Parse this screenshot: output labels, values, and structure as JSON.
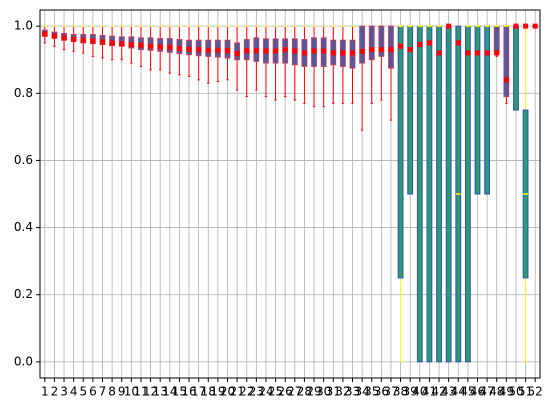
{
  "chart_data": {
    "type": "box",
    "categories": [
      "1",
      "2",
      "3",
      "4",
      "5",
      "6",
      "7",
      "8",
      "9",
      "10",
      "11",
      "12",
      "13",
      "14",
      "15",
      "16",
      "17",
      "18",
      "19",
      "20",
      "21",
      "22",
      "23",
      "24",
      "25",
      "26",
      "27",
      "28",
      "29",
      "30",
      "31",
      "32",
      "33",
      "34",
      "35",
      "36",
      "37",
      "38",
      "39",
      "40",
      "41",
      "42",
      "43",
      "44",
      "45",
      "46",
      "47",
      "48",
      "49",
      "50",
      "51",
      "52"
    ],
    "stats": [
      [
        0.95,
        0.97,
        0.978,
        0.988,
        1
      ],
      [
        0.94,
        0.965,
        0.972,
        0.982,
        1
      ],
      [
        0.93,
        0.958,
        0.967,
        0.978,
        1
      ],
      [
        0.925,
        0.955,
        0.962,
        0.975,
        1
      ],
      [
        0.92,
        0.95,
        0.96,
        0.975,
        1
      ],
      [
        0.91,
        0.948,
        0.958,
        0.975,
        1
      ],
      [
        0.905,
        0.945,
        0.955,
        0.972,
        1
      ],
      [
        0.9,
        0.942,
        0.952,
        0.97,
        1
      ],
      [
        0.9,
        0.94,
        0.95,
        0.968,
        1
      ],
      [
        0.89,
        0.935,
        0.948,
        0.968,
        1
      ],
      [
        0.88,
        0.93,
        0.945,
        0.965,
        1
      ],
      [
        0.87,
        0.928,
        0.943,
        0.965,
        1
      ],
      [
        0.87,
        0.925,
        0.94,
        0.963,
        1
      ],
      [
        0.86,
        0.922,
        0.94,
        0.963,
        1
      ],
      [
        0.855,
        0.918,
        0.935,
        0.96,
        1
      ],
      [
        0.85,
        0.915,
        0.933,
        0.958,
        1
      ],
      [
        0.84,
        0.912,
        0.932,
        0.958,
        1
      ],
      [
        0.83,
        0.91,
        0.93,
        0.958,
        1
      ],
      [
        0.835,
        0.908,
        0.93,
        0.958,
        1
      ],
      [
        0.84,
        0.905,
        0.93,
        0.958,
        1
      ],
      [
        0.81,
        0.9,
        0.92,
        0.95,
        1
      ],
      [
        0.79,
        0.9,
        0.93,
        0.96,
        1
      ],
      [
        0.81,
        0.895,
        0.93,
        0.965,
        1
      ],
      [
        0.79,
        0.89,
        0.93,
        0.962,
        1
      ],
      [
        0.78,
        0.89,
        0.93,
        0.962,
        1
      ],
      [
        0.79,
        0.89,
        0.935,
        0.962,
        1
      ],
      [
        0.78,
        0.885,
        0.93,
        0.962,
        1
      ],
      [
        0.77,
        0.88,
        0.925,
        0.96,
        1
      ],
      [
        0.76,
        0.88,
        0.93,
        0.965,
        1
      ],
      [
        0.76,
        0.88,
        0.93,
        0.965,
        1
      ],
      [
        0.77,
        0.885,
        0.925,
        0.958,
        1
      ],
      [
        0.77,
        0.88,
        0.925,
        0.958,
        1
      ],
      [
        0.77,
        0.875,
        0.925,
        0.958,
        1
      ],
      [
        0.69,
        0.89,
        0.93,
        1,
        1
      ],
      [
        0.77,
        0.9,
        0.93,
        1,
        1
      ],
      [
        0.78,
        0.91,
        0.93,
        1,
        1
      ],
      [
        0.72,
        0.875,
        0.93,
        1,
        1
      ],
      [
        0,
        0.25,
        1,
        1,
        1
      ],
      [
        0.5,
        0.5,
        1,
        1,
        1
      ],
      [
        0,
        0,
        1,
        1,
        1
      ],
      [
        0,
        0,
        1,
        1,
        1
      ],
      [
        0,
        0,
        1,
        1,
        1
      ],
      [
        0,
        0,
        1,
        1,
        1
      ],
      [
        0,
        0,
        0.5,
        1,
        1
      ],
      [
        0,
        0,
        1,
        1,
        1
      ],
      [
        0.5,
        0.5,
        1,
        1,
        1
      ],
      [
        0.5,
        0.5,
        1,
        1,
        1
      ],
      [
        0.91,
        0.92,
        1,
        1,
        1
      ],
      [
        0.77,
        0.79,
        1,
        1,
        1
      ],
      [
        0.75,
        0.75,
        1,
        1,
        1
      ],
      [
        0,
        0.25,
        0.5,
        0.75,
        1
      ],
      [
        1,
        1,
        1,
        1,
        1
      ]
    ],
    "means": [
      0.976,
      0.97,
      0.965,
      0.96,
      0.958,
      0.956,
      0.953,
      0.95,
      0.948,
      0.945,
      0.943,
      0.94,
      0.938,
      0.937,
      0.933,
      0.931,
      0.93,
      0.928,
      0.928,
      0.927,
      0.918,
      0.927,
      0.927,
      0.926,
      0.926,
      0.93,
      0.926,
      0.92,
      0.926,
      0.926,
      0.92,
      0.92,
      0.92,
      0.925,
      0.93,
      0.93,
      0.93,
      0.94,
      0.93,
      0.945,
      0.95,
      0.92,
      1,
      0.95,
      0.92,
      0.92,
      0.92,
      0.92,
      0.84,
      1,
      1,
      1
    ],
    "box_colors": [
      "#4c5a9e",
      "#4c5a9e",
      "#4c5a9e",
      "#4c5a9e",
      "#4c5a9e",
      "#4c5a9e",
      "#4c5a9e",
      "#4c5a9e",
      "#4c5a9e",
      "#4c5a9e",
      "#4c5a9e",
      "#4c5a9e",
      "#4c5a9e",
      "#4c5a9e",
      "#4c5a9e",
      "#4c5a9e",
      "#4c5a9e",
      "#4c5a9e",
      "#4c5a9e",
      "#4c5a9e",
      "#4c5a9e",
      "#4c5a9e",
      "#4c5a9e",
      "#4c5a9e",
      "#4c5a9e",
      "#4c5a9e",
      "#4c5a9e",
      "#4c5a9e",
      "#4c5a9e",
      "#4c5a9e",
      "#4c5a9e",
      "#4c5a9e",
      "#4c5a9e",
      "#4c5a9e",
      "#4c5a9e",
      "#4c5a9e",
      "#4c5a9e",
      "#2e9a6e",
      "#2e9a6e",
      "#2e9a6e",
      "#2e9a6e",
      "#2e9a6e",
      "#2e9a6e",
      "#2e9a6e",
      "#2e9a6e",
      "#2e9a6e",
      "#2e9a6e",
      "#4c5a9e",
      "#4c5a9e",
      "#2e9a6e",
      "#2e9a6e",
      "#2e9a6e"
    ],
    "whisker_color": "#ff0000",
    "median_color": "#ffff00",
    "mean_color": "#ff0000",
    "ylim": [
      -0.048,
      1.048
    ],
    "yticks": [
      {
        "value": 0,
        "label": "0.0"
      },
      {
        "value": 0.2,
        "label": "0.2"
      },
      {
        "value": 0.4,
        "label": "0.4"
      },
      {
        "value": 0.6,
        "label": "0.6"
      },
      {
        "value": 0.8,
        "label": "0.8"
      },
      {
        "value": 1,
        "label": "1.0"
      }
    ],
    "grid": true
  }
}
